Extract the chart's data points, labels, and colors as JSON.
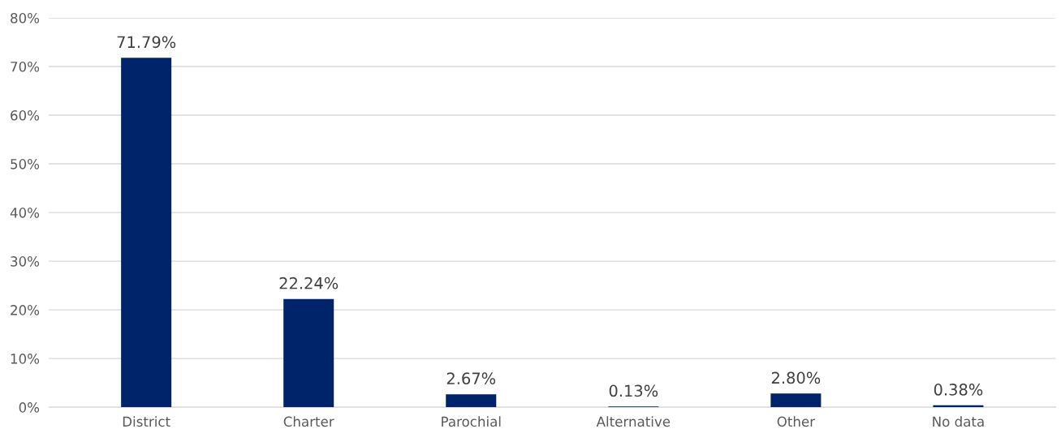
{
  "chart_data": {
    "type": "bar",
    "categories": [
      "District",
      "Charter",
      "Parochial",
      "Alternative",
      "Other",
      "No data"
    ],
    "values": [
      71.79,
      22.24,
      2.67,
      0.13,
      2.8,
      0.38
    ],
    "value_labels": [
      "71.79%",
      "22.24%",
      "2.67%",
      "0.13%",
      "2.80%",
      "0.38%"
    ],
    "color": "#002469",
    "ylim": [
      0,
      80
    ],
    "yticks": [
      {
        "value": 0,
        "label": "0%"
      },
      {
        "value": 10,
        "label": "10%"
      },
      {
        "value": 20,
        "label": "20%"
      },
      {
        "value": 30,
        "label": "30%"
      },
      {
        "value": 40,
        "label": "40%"
      },
      {
        "value": 50,
        "label": "50%"
      },
      {
        "value": 60,
        "label": "60%"
      },
      {
        "value": 70,
        "label": "70%"
      },
      {
        "value": 80,
        "label": "80%"
      }
    ],
    "grid": "y",
    "legend": false
  }
}
